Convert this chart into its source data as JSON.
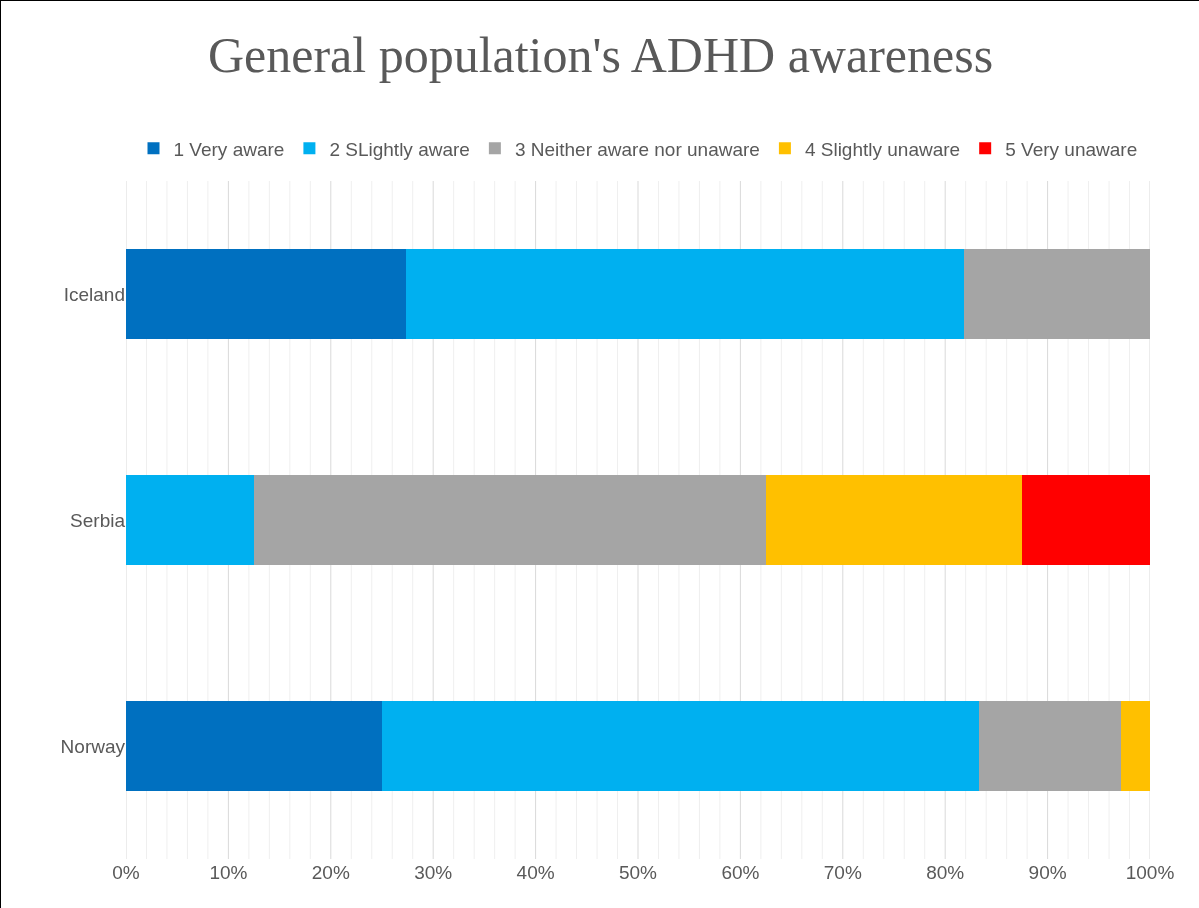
{
  "chart_data": {
    "type": "bar",
    "orientation": "horizontal",
    "stacked": true,
    "title": "General population's ADHD awareness",
    "categories": [
      "Iceland",
      "Serbia",
      "Norway"
    ],
    "series": [
      {
        "name": "1 Very aware",
        "color": "#0070c0",
        "values": [
          27.3,
          0,
          25
        ]
      },
      {
        "name": "2 SLightly aware",
        "color": "#00b0f0",
        "values": [
          54.5,
          12.5,
          58.3
        ]
      },
      {
        "name": "3 Neither aware nor unaware",
        "color": "#a5a5a5",
        "values": [
          18.2,
          50,
          13.9
        ]
      },
      {
        "name": "4 Slightly unaware",
        "color": "#ffc000",
        "values": [
          0,
          25,
          2.8
        ]
      },
      {
        "name": "5 Very unaware",
        "color": "#ff0000",
        "values": [
          0,
          12.5,
          0
        ]
      }
    ],
    "xlim": [
      0,
      100
    ],
    "xticks": [
      {
        "value": 0,
        "label": "0%"
      },
      {
        "value": 2,
        "label": null
      },
      {
        "value": 4,
        "label": null
      },
      {
        "value": 6,
        "label": null
      },
      {
        "value": 8,
        "label": null
      },
      {
        "value": 10,
        "label": "10%"
      },
      {
        "value": 12,
        "label": null
      },
      {
        "value": 14,
        "label": null
      },
      {
        "value": 16,
        "label": null
      },
      {
        "value": 18,
        "label": null
      },
      {
        "value": 20,
        "label": "20%"
      },
      {
        "value": 22,
        "label": null
      },
      {
        "value": 24,
        "label": null
      },
      {
        "value": 26,
        "label": null
      },
      {
        "value": 28,
        "label": null
      },
      {
        "value": 30,
        "label": "30%"
      },
      {
        "value": 32,
        "label": null
      },
      {
        "value": 34,
        "label": null
      },
      {
        "value": 36,
        "label": null
      },
      {
        "value": 38,
        "label": null
      },
      {
        "value": 40,
        "label": "40%"
      },
      {
        "value": 42,
        "label": null
      },
      {
        "value": 44,
        "label": null
      },
      {
        "value": 46,
        "label": null
      },
      {
        "value": 48,
        "label": null
      },
      {
        "value": 50,
        "label": "50%"
      },
      {
        "value": 52,
        "label": null
      },
      {
        "value": 54,
        "label": null
      },
      {
        "value": 56,
        "label": null
      },
      {
        "value": 58,
        "label": null
      },
      {
        "value": 60,
        "label": "60%"
      },
      {
        "value": 62,
        "label": null
      },
      {
        "value": 64,
        "label": null
      },
      {
        "value": 66,
        "label": null
      },
      {
        "value": 68,
        "label": null
      },
      {
        "value": 70,
        "label": "70%"
      },
      {
        "value": 72,
        "label": null
      },
      {
        "value": 74,
        "label": null
      },
      {
        "value": 76,
        "label": null
      },
      {
        "value": 78,
        "label": null
      },
      {
        "value": 80,
        "label": "80%"
      },
      {
        "value": 82,
        "label": null
      },
      {
        "value": 84,
        "label": null
      },
      {
        "value": 86,
        "label": null
      },
      {
        "value": 88,
        "label": null
      },
      {
        "value": 90,
        "label": "90%"
      },
      {
        "value": 92,
        "label": null
      },
      {
        "value": 94,
        "label": null
      },
      {
        "value": 96,
        "label": null
      },
      {
        "value": 98,
        "label": null
      },
      {
        "value": 100,
        "label": "100%"
      }
    ],
    "grid": true,
    "legend": "top"
  }
}
